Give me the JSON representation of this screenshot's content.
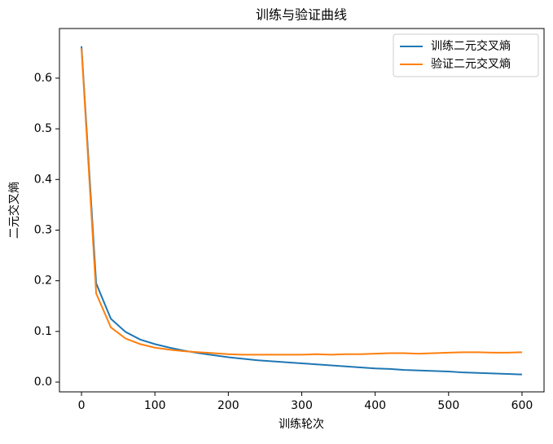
{
  "chart_data": {
    "type": "line",
    "title": "训练与验证曲线",
    "x_label": "训练轮次",
    "y_label": "二元交叉熵",
    "x": [
      0,
      20,
      40,
      60,
      80,
      100,
      120,
      140,
      160,
      180,
      200,
      220,
      240,
      260,
      280,
      300,
      320,
      340,
      360,
      380,
      400,
      420,
      440,
      460,
      480,
      500,
      520,
      540,
      560,
      580,
      600
    ],
    "series": [
      {
        "name": "训练二元交叉熵",
        "color": "#1f77b4",
        "values": [
          0.663,
          0.195,
          0.125,
          0.099,
          0.084,
          0.075,
          0.068,
          0.062,
          0.057,
          0.053,
          0.049,
          0.046,
          0.043,
          0.041,
          0.039,
          0.037,
          0.035,
          0.033,
          0.031,
          0.029,
          0.027,
          0.026,
          0.024,
          0.023,
          0.022,
          0.021,
          0.019,
          0.018,
          0.017,
          0.016,
          0.015
        ]
      },
      {
        "name": "验证二元交叉熵",
        "color": "#ff7f0e",
        "values": [
          0.659,
          0.175,
          0.108,
          0.086,
          0.075,
          0.068,
          0.064,
          0.061,
          0.059,
          0.057,
          0.055,
          0.054,
          0.054,
          0.054,
          0.054,
          0.054,
          0.055,
          0.054,
          0.055,
          0.055,
          0.056,
          0.057,
          0.057,
          0.056,
          0.057,
          0.058,
          0.059,
          0.059,
          0.058,
          0.058,
          0.059
        ]
      }
    ],
    "xlim": [
      -30,
      630
    ],
    "xticks": [
      0,
      100,
      200,
      300,
      400,
      500,
      600
    ],
    "ylim": [
      -0.0193,
      0.698
    ],
    "yticks": [
      {
        "value": 0,
        "label": "0.0"
      },
      0.1,
      0.2,
      0.3,
      0.4,
      0.5,
      0.6
    ],
    "legend": "upper right"
  }
}
